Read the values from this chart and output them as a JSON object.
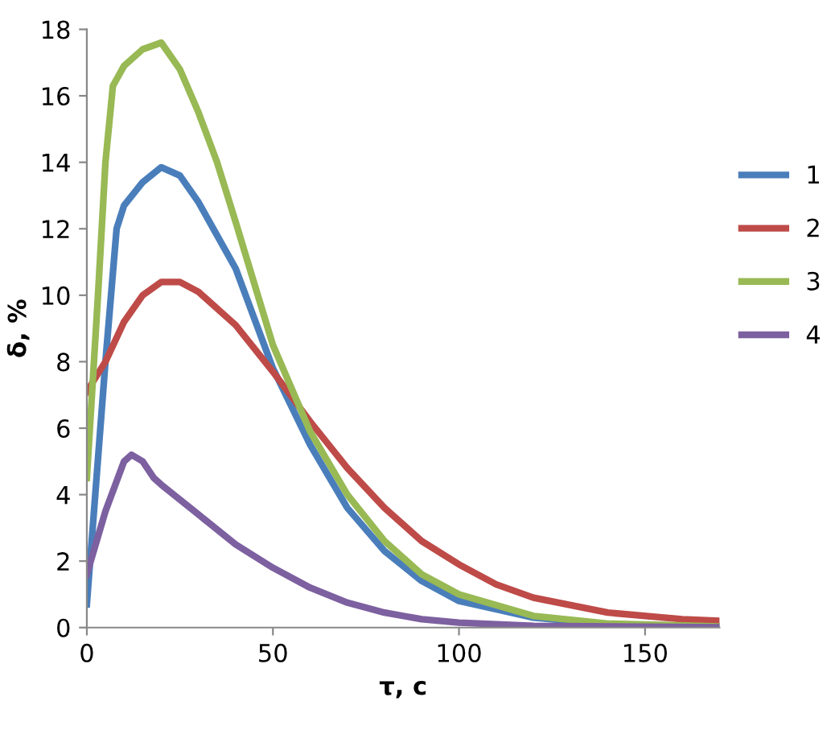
{
  "chart_data": {
    "type": "line",
    "xlabel": "τ, c",
    "ylabel": "δ, %",
    "xlim": [
      0,
      170
    ],
    "ylim": [
      0,
      18
    ],
    "xticks": [
      0,
      50,
      100,
      150
    ],
    "yticks": [
      0,
      2,
      4,
      6,
      8,
      10,
      12,
      14,
      16,
      18
    ],
    "grid": false,
    "legend": "right",
    "marker": "none",
    "line_style": "solid",
    "series": [
      {
        "name": "1",
        "color": "#4a7ebb",
        "x": [
          0,
          5,
          8,
          10,
          15,
          20,
          25,
          30,
          40,
          50,
          60,
          70,
          80,
          90,
          100,
          120,
          140,
          170
        ],
        "values": [
          0.7,
          8,
          12,
          12.7,
          13.4,
          13.85,
          13.6,
          12.8,
          10.8,
          7.8,
          5.5,
          3.6,
          2.3,
          1.4,
          0.8,
          0.3,
          0.1,
          0.03
        ]
      },
      {
        "name": "2",
        "color": "#be4b48",
        "x": [
          0,
          5,
          10,
          15,
          20,
          25,
          30,
          40,
          50,
          60,
          70,
          80,
          90,
          100,
          110,
          120,
          140,
          160,
          170
        ],
        "values": [
          7.1,
          8,
          9.2,
          10,
          10.4,
          10.4,
          10.1,
          9.1,
          7.7,
          6.2,
          4.8,
          3.6,
          2.6,
          1.9,
          1.3,
          0.9,
          0.45,
          0.25,
          0.2
        ]
      },
      {
        "name": "3",
        "color": "#98b954",
        "x": [
          0,
          3,
          5,
          7,
          10,
          15,
          20,
          25,
          30,
          35,
          40,
          50,
          60,
          70,
          80,
          90,
          100,
          120,
          140,
          170
        ],
        "values": [
          4.5,
          10,
          14,
          16.3,
          16.9,
          17.4,
          17.6,
          16.8,
          15.5,
          14,
          12.2,
          8.5,
          5.9,
          4,
          2.6,
          1.6,
          1,
          0.35,
          0.12,
          0.03
        ]
      },
      {
        "name": "4",
        "color": "#7d60a0",
        "x": [
          0,
          5,
          10,
          12,
          15,
          18,
          20,
          30,
          40,
          50,
          60,
          70,
          80,
          90,
          100,
          120,
          170
        ],
        "values": [
          1.6,
          3.5,
          5.0,
          5.2,
          5.0,
          4.5,
          4.3,
          3.4,
          2.5,
          1.8,
          1.2,
          0.75,
          0.45,
          0.25,
          0.15,
          0.05,
          0.01
        ]
      }
    ]
  }
}
